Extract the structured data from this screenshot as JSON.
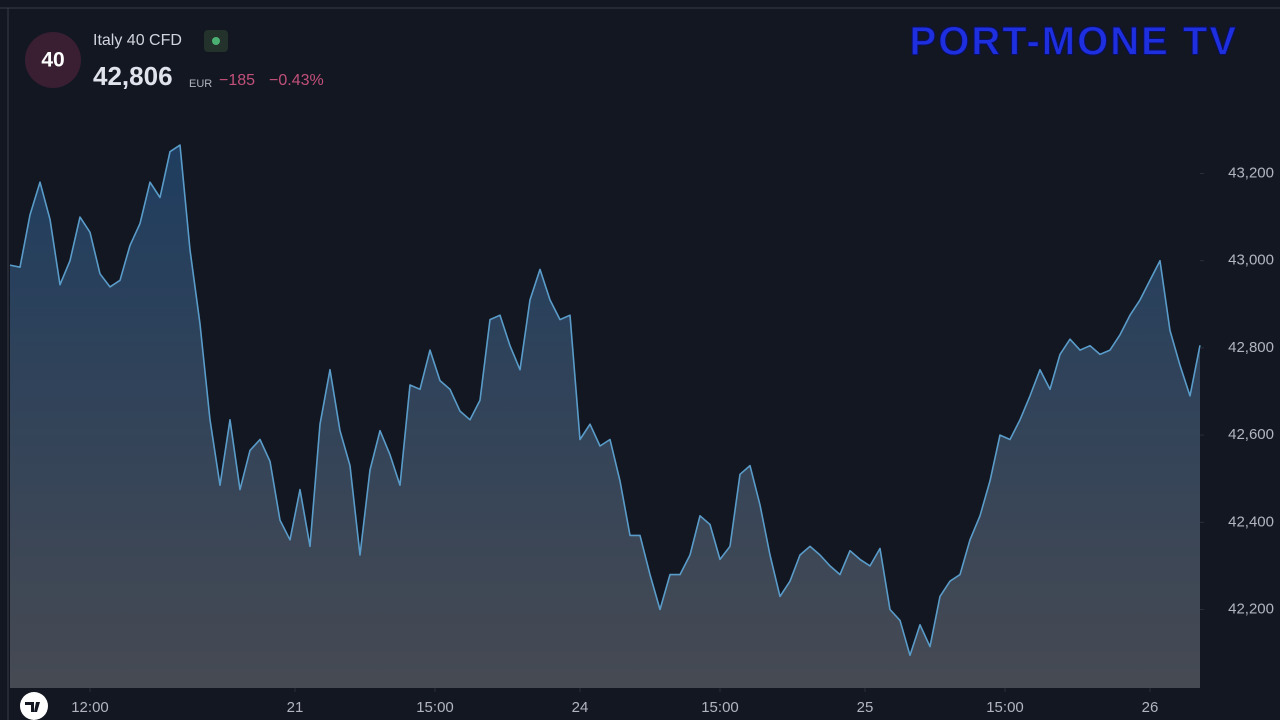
{
  "header": {
    "badge": "40",
    "symbol": "Italy 40 CFD",
    "price": "42,806",
    "currency": "EUR",
    "change": "−185",
    "change_pct": "−0.43%",
    "logo": "PORT-MONE TV"
  },
  "chart_data": {
    "type": "area",
    "color": "#5a9cc9",
    "x": [
      0,
      2,
      4,
      6,
      8,
      10,
      12,
      14,
      16,
      18,
      20,
      22,
      24,
      26,
      28,
      30,
      32,
      34,
      36,
      38,
      40,
      42,
      44,
      46,
      48,
      50,
      52,
      54,
      56,
      58,
      60,
      62,
      64,
      66,
      68,
      70,
      72,
      74,
      76,
      78,
      80,
      82,
      84,
      86,
      88,
      90,
      92,
      94,
      96,
      98,
      100,
      102,
      104,
      106,
      108,
      110,
      112,
      114,
      116,
      118,
      120,
      122,
      124,
      126,
      128,
      130,
      132,
      134,
      136,
      138,
      140,
      142,
      144,
      146,
      148,
      150,
      152,
      154,
      156,
      158,
      160,
      162,
      164,
      166,
      168,
      170,
      172,
      174,
      176,
      178,
      180,
      182,
      184,
      186,
      188,
      190,
      192,
      194,
      196,
      198,
      200,
      202,
      204,
      206,
      208,
      210,
      212,
      214,
      216,
      218,
      220,
      222,
      224,
      226,
      228,
      230,
      232,
      234,
      236,
      238
    ],
    "values": [
      42990,
      42985,
      43105,
      43180,
      43095,
      42945,
      43000,
      43100,
      43065,
      42970,
      42940,
      42955,
      43035,
      43085,
      43180,
      43145,
      43250,
      43265,
      43025,
      42855,
      42635,
      42485,
      42635,
      42475,
      42565,
      42590,
      42540,
      42405,
      42360,
      42475,
      42345,
      42625,
      42750,
      42610,
      42530,
      42325,
      42520,
      42610,
      42555,
      42485,
      42715,
      42705,
      42795,
      42725,
      42705,
      42655,
      42635,
      42680,
      42865,
      42875,
      42805,
      42750,
      42910,
      42980,
      42910,
      42865,
      42875,
      42590,
      42625,
      42575,
      42590,
      42495,
      42370,
      42370,
      42280,
      42200,
      42280,
      42280,
      42325,
      42415,
      42395,
      42315,
      42345,
      42510,
      42530,
      42440,
      42325,
      42230,
      42265,
      42325,
      42345,
      42325,
      42300,
      42280,
      42335,
      42315,
      42300,
      42340,
      42200,
      42175,
      42095,
      42165,
      42115,
      42230,
      42265,
      42280,
      42360,
      42415,
      42495,
      42600,
      42590,
      42635,
      42690,
      42750,
      42705,
      42785,
      42820,
      42795,
      42805,
      42785,
      42795,
      42830,
      42875,
      42910,
      42955,
      43000,
      42840,
      42760,
      42690,
      42806
    ],
    "xlim": [
      0,
      238
    ],
    "xticks": [
      {
        "value": 16,
        "label": "12:00"
      },
      {
        "value": 57,
        "label": "21"
      },
      {
        "value": 85,
        "label": "15:00"
      },
      {
        "value": 114,
        "label": "24"
      },
      {
        "value": 142,
        "label": "15:00"
      },
      {
        "value": 171,
        "label": "25"
      },
      {
        "value": 199,
        "label": "15:00"
      },
      {
        "value": 228,
        "label": "26"
      }
    ],
    "ylim": [
      42020,
      43380
    ],
    "yticks": [
      {
        "value": 42200,
        "label": "42,200"
      },
      {
        "value": 42400,
        "label": "42,400"
      },
      {
        "value": 42600,
        "label": "42,600"
      },
      {
        "value": 42800,
        "label": "42,800"
      },
      {
        "value": 43000,
        "label": "43,000"
      },
      {
        "value": 43200,
        "label": "43,200"
      }
    ]
  }
}
